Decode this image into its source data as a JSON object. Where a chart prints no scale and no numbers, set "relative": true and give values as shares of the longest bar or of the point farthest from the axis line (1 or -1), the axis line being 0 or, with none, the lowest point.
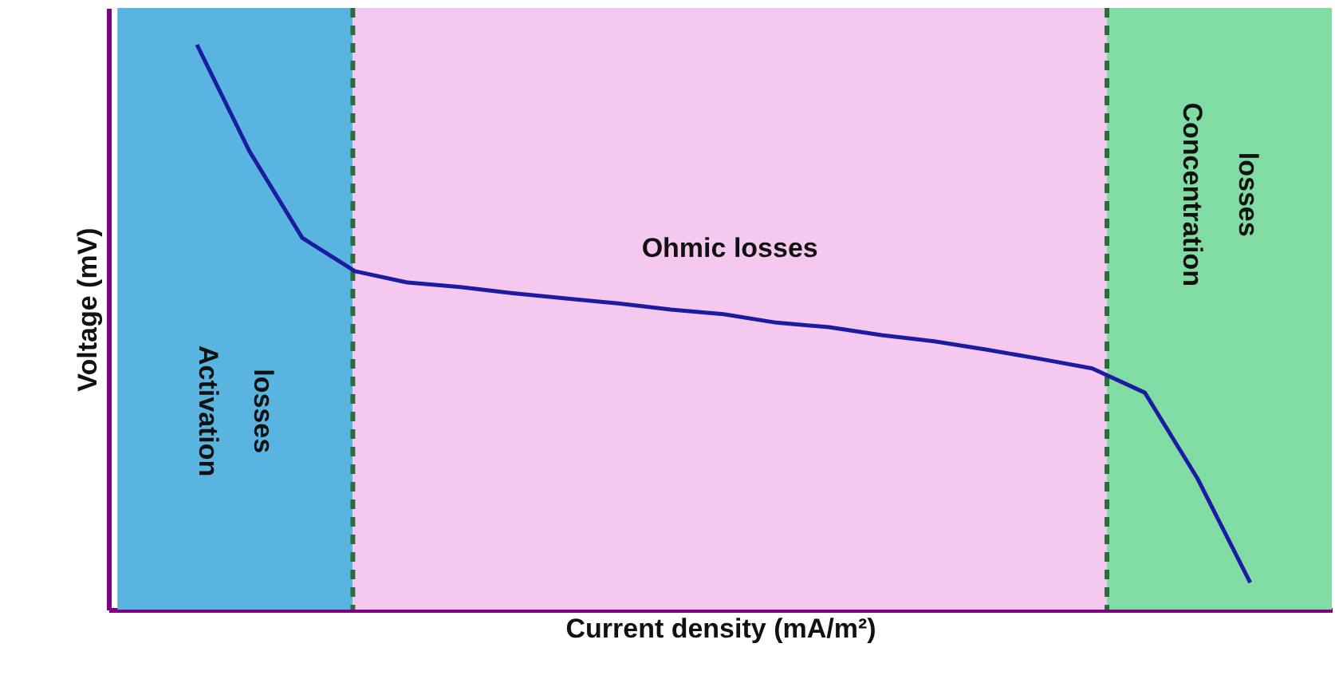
{
  "chart_data": {
    "type": "line",
    "relative": true,
    "xlabel": "Current density     (mA/m²)",
    "ylabel": "Voltage (mV)",
    "categories": [
      null,
      null,
      null,
      null,
      null,
      null,
      null,
      null,
      null,
      null,
      null,
      null,
      null,
      null,
      null,
      null,
      null,
      null,
      null,
      null,
      null
    ],
    "values": [
      1,
      0.811,
      0.658,
      0.599,
      0.579,
      0.571,
      0.56,
      0.551,
      0.542,
      0.531,
      0.523,
      0.508,
      0.5,
      0.486,
      0.475,
      0.46,
      0.444,
      0.427,
      0.384,
      0.232,
      0.048
    ],
    "color": "#1c1ca0",
    "line_style": "solid",
    "annotations": [
      "Activation losses",
      "Ohmic losses",
      "Concentration losses"
    ]
  }
}
